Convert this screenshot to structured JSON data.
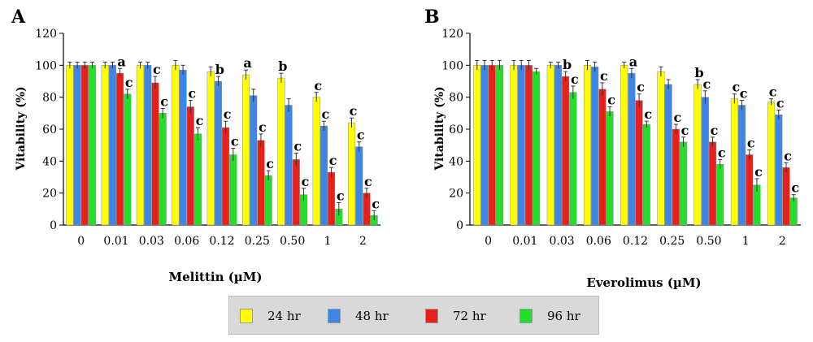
{
  "colors": {
    "24 hr": "#ffff00",
    "48 hr": "#3d85e6",
    "72 hr": "#e8201a",
    "96 hr": "#22e02a"
  },
  "legend": [
    {
      "label": "24 hr",
      "color": "#ffff00"
    },
    {
      "label": "48 hr",
      "color": "#3d85e6"
    },
    {
      "label": "72 hr",
      "color": "#e8201a"
    },
    {
      "label": "96 hr",
      "color": "#22e02a"
    }
  ],
  "chart_data": [
    {
      "type": "bar",
      "panel_label": "A",
      "xlabel": "Melittin (µM)",
      "ylabel": "Vitability (%)",
      "ylim": [
        0,
        120
      ],
      "yticks": [
        0,
        20,
        40,
        60,
        80,
        100,
        120
      ],
      "categories": [
        "0",
        "0.01",
        "0.03",
        "0.06",
        "0.12",
        "0.25",
        "0.50",
        "1",
        "2"
      ],
      "series": [
        {
          "name": "24 hr",
          "values": [
            100,
            100,
            100,
            100,
            96,
            94,
            92,
            80,
            64
          ],
          "errors": [
            2,
            2,
            2,
            3,
            3,
            3,
            3,
            3,
            3
          ],
          "annotations": [
            "",
            "",
            "",
            "",
            "",
            "a",
            "b",
            "c",
            "c"
          ]
        },
        {
          "name": "48 hr",
          "values": [
            100,
            100,
            100,
            97,
            90,
            81,
            75,
            62,
            49
          ],
          "errors": [
            2,
            2,
            2,
            3,
            3,
            4,
            4,
            3,
            3
          ],
          "annotations": [
            "",
            "",
            "",
            "",
            "b",
            "",
            "",
            "c",
            "c"
          ]
        },
        {
          "name": "72 hr",
          "values": [
            100,
            95,
            89,
            74,
            61,
            53,
            41,
            33,
            20
          ],
          "errors": [
            2,
            3,
            4,
            4,
            4,
            4,
            4,
            3,
            3
          ],
          "annotations": [
            "",
            "a",
            "c",
            "c",
            "c",
            "c",
            "c",
            "c",
            "c"
          ]
        },
        {
          "name": "96 hr",
          "values": [
            100,
            82,
            70,
            57,
            44,
            31,
            19,
            10,
            6
          ],
          "errors": [
            2,
            3,
            3,
            4,
            4,
            3,
            4,
            4,
            3
          ],
          "annotations": [
            "",
            "c",
            "c",
            "c",
            "c",
            "c",
            "c",
            "c",
            "c"
          ]
        }
      ]
    },
    {
      "type": "bar",
      "panel_label": "B",
      "xlabel": "Everolimus (µM)",
      "ylabel": "Vitability (%)",
      "ylim": [
        0,
        120
      ],
      "yticks": [
        0,
        20,
        40,
        60,
        80,
        100,
        120
      ],
      "categories": [
        "0",
        "0.01",
        "0.03",
        "0.06",
        "0.12",
        "0.25",
        "0.50",
        "1",
        "2"
      ],
      "series": [
        {
          "name": "24 hr",
          "values": [
            100,
            100,
            100,
            100,
            100,
            96,
            88,
            79,
            77
          ],
          "errors": [
            3,
            3,
            2,
            3,
            2,
            3,
            3,
            3,
            2
          ],
          "annotations": [
            "",
            "",
            "",
            "",
            "",
            "",
            "b",
            "c",
            "c"
          ]
        },
        {
          "name": "48 hr",
          "values": [
            100,
            100,
            100,
            99,
            95,
            88,
            80,
            75,
            69
          ],
          "errors": [
            3,
            3,
            2,
            3,
            3,
            3,
            4,
            3,
            3
          ],
          "annotations": [
            "",
            "",
            "",
            "",
            "a",
            "",
            "c",
            "c",
            "c"
          ]
        },
        {
          "name": "72 hr",
          "values": [
            100,
            100,
            93,
            85,
            78,
            60,
            52,
            44,
            36
          ],
          "errors": [
            3,
            3,
            3,
            4,
            4,
            3,
            3,
            3,
            3
          ],
          "annotations": [
            "",
            "",
            "b",
            "c",
            "c",
            "c",
            "c",
            "c",
            "c"
          ]
        },
        {
          "name": "96 hr",
          "values": [
            100,
            96,
            83,
            71,
            63,
            52,
            38,
            25,
            17
          ],
          "errors": [
            3,
            2,
            4,
            3,
            2,
            3,
            3,
            4,
            2
          ],
          "annotations": [
            "",
            "",
            "c",
            "c",
            "c",
            "c",
            "c",
            "c",
            "c"
          ]
        }
      ]
    }
  ]
}
